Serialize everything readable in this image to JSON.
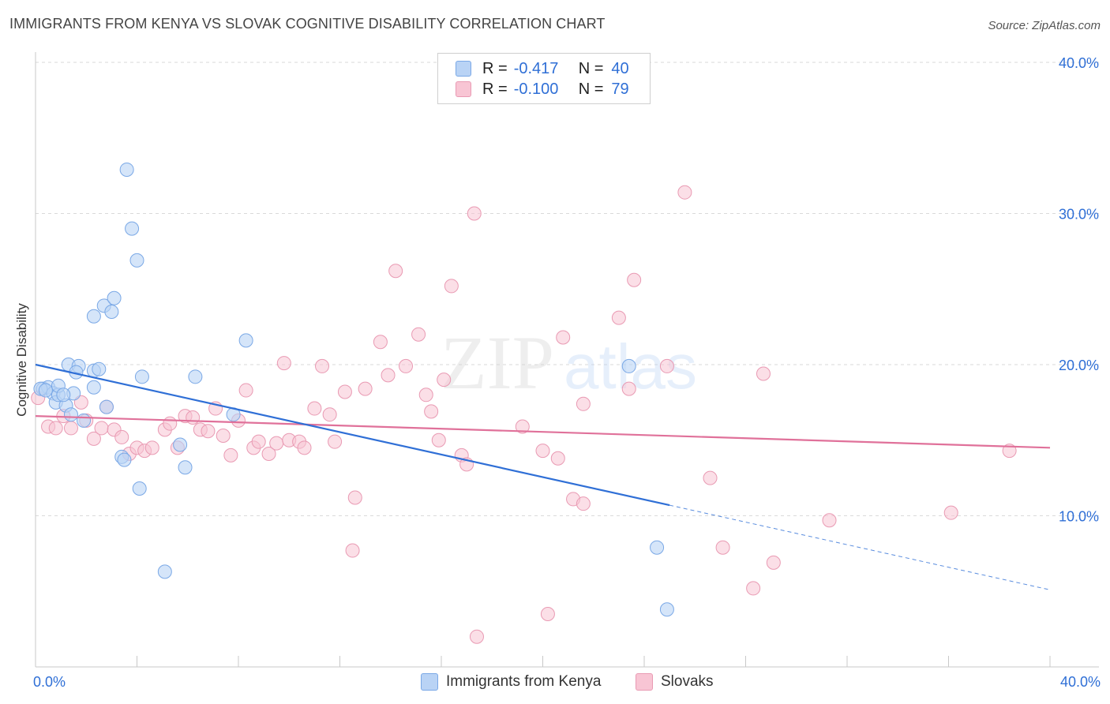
{
  "title": "IMMIGRANTS FROM KENYA VS SLOVAK COGNITIVE DISABILITY CORRELATION CHART",
  "source": "Source: ZipAtlas.com",
  "watermark": {
    "zip": "ZIP",
    "atlas": "atlas"
  },
  "legend": {
    "rows": [
      {
        "r_label": "R =",
        "r_value": "-0.417",
        "n_label": "N =",
        "n_value": "40"
      },
      {
        "r_label": "R =",
        "r_value": "-0.100",
        "n_label": "N =",
        "n_value": "79"
      }
    ]
  },
  "colors": {
    "kenya_fill": "#b9d3f5",
    "kenya_stroke": "#7aa8e6",
    "kenya_line": "#2f6fd6",
    "slovak_fill": "#f8c5d4",
    "slovak_stroke": "#e99ab3",
    "slovak_line": "#e0719a",
    "tick_label": "#2f6fd6",
    "grid": "#d9d9d9"
  },
  "chart_data": {
    "type": "scatter",
    "title": "IMMIGRANTS FROM KENYA VS SLOVAK COGNITIVE DISABILITY CORRELATION CHART",
    "xlabel": "",
    "ylabel": "Cognitive Disability",
    "xlim": [
      0,
      40
    ],
    "ylim": [
      0,
      40
    ],
    "x_tick_labels": [
      "0.0%",
      "40.0%"
    ],
    "y_ticks": [
      10,
      20,
      30,
      40
    ],
    "y_tick_labels": [
      "10.0%",
      "20.0%",
      "30.0%",
      "40.0%"
    ],
    "grid": true,
    "series": [
      {
        "name": "Immigrants from Kenya",
        "r": -0.417,
        "n": 40,
        "trend": {
          "x0": 0,
          "y0": 20.0,
          "x1": 25.0,
          "y1": 10.7,
          "dash_to_x": 40.0,
          "dash_to_y": 5.1
        },
        "points": [
          [
            0.3,
            18.4
          ],
          [
            0.5,
            18.5
          ],
          [
            0.7,
            18.1
          ],
          [
            0.8,
            17.5
          ],
          [
            0.9,
            18.0
          ],
          [
            1.2,
            17.3
          ],
          [
            1.4,
            16.7
          ],
          [
            1.5,
            18.1
          ],
          [
            0.9,
            18.6
          ],
          [
            1.3,
            20.0
          ],
          [
            1.7,
            19.9
          ],
          [
            1.6,
            19.5
          ],
          [
            2.3,
            19.6
          ],
          [
            2.5,
            19.7
          ],
          [
            2.3,
            18.5
          ],
          [
            1.9,
            16.3
          ],
          [
            2.8,
            17.2
          ],
          [
            2.3,
            23.2
          ],
          [
            2.7,
            23.9
          ],
          [
            3.1,
            24.4
          ],
          [
            3.0,
            23.5
          ],
          [
            3.6,
            32.9
          ],
          [
            3.8,
            29.0
          ],
          [
            4.0,
            26.9
          ],
          [
            4.2,
            19.2
          ],
          [
            3.4,
            13.9
          ],
          [
            3.5,
            13.7
          ],
          [
            4.1,
            11.8
          ],
          [
            5.1,
            6.3
          ],
          [
            5.7,
            14.7
          ],
          [
            5.9,
            13.2
          ],
          [
            6.3,
            19.2
          ],
          [
            7.8,
            16.7
          ],
          [
            8.3,
            21.6
          ],
          [
            23.4,
            19.9
          ],
          [
            24.5,
            7.9
          ],
          [
            24.9,
            3.8
          ],
          [
            0.2,
            18.4
          ],
          [
            0.4,
            18.3
          ],
          [
            1.1,
            18.0
          ]
        ]
      },
      {
        "name": "Slovaks",
        "r": -0.1,
        "n": 79,
        "trend": {
          "x0": 0,
          "y0": 16.6,
          "x1": 40.0,
          "y1": 14.5
        },
        "points": [
          [
            0.1,
            17.8
          ],
          [
            0.5,
            15.9
          ],
          [
            0.8,
            15.8
          ],
          [
            1.1,
            16.6
          ],
          [
            1.4,
            15.8
          ],
          [
            1.8,
            17.5
          ],
          [
            2.0,
            16.3
          ],
          [
            2.3,
            15.1
          ],
          [
            2.6,
            15.8
          ],
          [
            2.8,
            17.2
          ],
          [
            3.1,
            15.7
          ],
          [
            3.4,
            15.2
          ],
          [
            3.7,
            14.1
          ],
          [
            4.0,
            14.5
          ],
          [
            4.3,
            14.3
          ],
          [
            4.6,
            14.5
          ],
          [
            5.1,
            15.7
          ],
          [
            5.3,
            16.1
          ],
          [
            5.6,
            14.5
          ],
          [
            5.9,
            16.6
          ],
          [
            6.2,
            16.5
          ],
          [
            6.5,
            15.7
          ],
          [
            6.8,
            15.6
          ],
          [
            7.1,
            17.1
          ],
          [
            7.4,
            15.3
          ],
          [
            7.7,
            14.0
          ],
          [
            8.0,
            16.3
          ],
          [
            8.3,
            18.3
          ],
          [
            8.6,
            14.5
          ],
          [
            8.8,
            14.9
          ],
          [
            9.2,
            14.1
          ],
          [
            9.5,
            14.8
          ],
          [
            9.8,
            20.1
          ],
          [
            10.0,
            15.0
          ],
          [
            10.4,
            14.9
          ],
          [
            10.6,
            14.5
          ],
          [
            11.0,
            17.1
          ],
          [
            11.3,
            19.9
          ],
          [
            11.6,
            16.7
          ],
          [
            11.8,
            14.9
          ],
          [
            12.2,
            18.2
          ],
          [
            12.6,
            11.2
          ],
          [
            12.5,
            7.7
          ],
          [
            13.0,
            18.4
          ],
          [
            13.6,
            21.5
          ],
          [
            13.9,
            19.3
          ],
          [
            14.2,
            26.2
          ],
          [
            14.6,
            19.9
          ],
          [
            15.1,
            22.0
          ],
          [
            15.4,
            18.0
          ],
          [
            15.6,
            16.9
          ],
          [
            15.9,
            15.0
          ],
          [
            16.1,
            19.0
          ],
          [
            16.4,
            25.2
          ],
          [
            16.8,
            14.0
          ],
          [
            17.0,
            13.4
          ],
          [
            17.3,
            30.0
          ],
          [
            17.4,
            2.0
          ],
          [
            19.2,
            15.9
          ],
          [
            20.0,
            14.3
          ],
          [
            20.2,
            3.5
          ],
          [
            20.6,
            13.8
          ],
          [
            20.8,
            21.8
          ],
          [
            21.2,
            11.1
          ],
          [
            21.6,
            10.8
          ],
          [
            21.6,
            17.4
          ],
          [
            23.0,
            23.1
          ],
          [
            23.4,
            18.4
          ],
          [
            23.6,
            25.6
          ],
          [
            24.9,
            19.9
          ],
          [
            25.6,
            31.4
          ],
          [
            26.6,
            12.5
          ],
          [
            27.1,
            7.9
          ],
          [
            28.3,
            5.2
          ],
          [
            28.7,
            19.4
          ],
          [
            29.1,
            6.9
          ],
          [
            31.3,
            9.7
          ],
          [
            36.1,
            10.2
          ],
          [
            38.4,
            14.3
          ]
        ]
      }
    ]
  },
  "bottom_legend": {
    "items": [
      {
        "label": "Immigrants from Kenya"
      },
      {
        "label": "Slovaks"
      }
    ]
  }
}
